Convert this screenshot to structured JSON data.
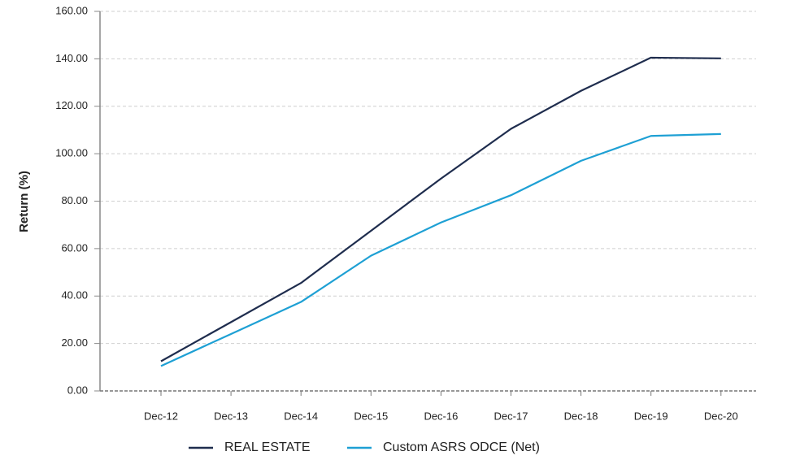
{
  "chart_data": {
    "type": "line",
    "y_label": "Return (%)",
    "categories": [
      "Dec-12",
      "Dec-13",
      "Dec-14",
      "Dec-15",
      "Dec-16",
      "Dec-17",
      "Dec-18",
      "Dec-19",
      "Dec-20"
    ],
    "series": [
      {
        "name": "REAL ESTATE",
        "color": "#1f2d4e",
        "values": [
          12.5,
          29,
          45.5,
          67.5,
          89.5,
          110.5,
          126.5,
          140.5,
          140.2
        ]
      },
      {
        "name": "Custom ASRS ODCE (Net)",
        "color": "#1ea0d4",
        "values": [
          10.5,
          24,
          37.5,
          57,
          71,
          82.5,
          97,
          107.5,
          108.3
        ]
      }
    ],
    "ylim": [
      0,
      160
    ],
    "yticks": [
      {
        "value": 0,
        "label": "0.00"
      },
      {
        "value": 20,
        "label": "20.00"
      },
      {
        "value": 40,
        "label": "40.00"
      },
      {
        "value": 60,
        "label": "60.00"
      },
      {
        "value": 80,
        "label": "80.00"
      },
      {
        "value": 100,
        "label": "100.00"
      },
      {
        "value": 120,
        "label": "120.00"
      },
      {
        "value": 140,
        "label": "140.00"
      },
      {
        "value": 160,
        "label": "160.00"
      }
    ],
    "grid": true,
    "legend": "bottom"
  }
}
